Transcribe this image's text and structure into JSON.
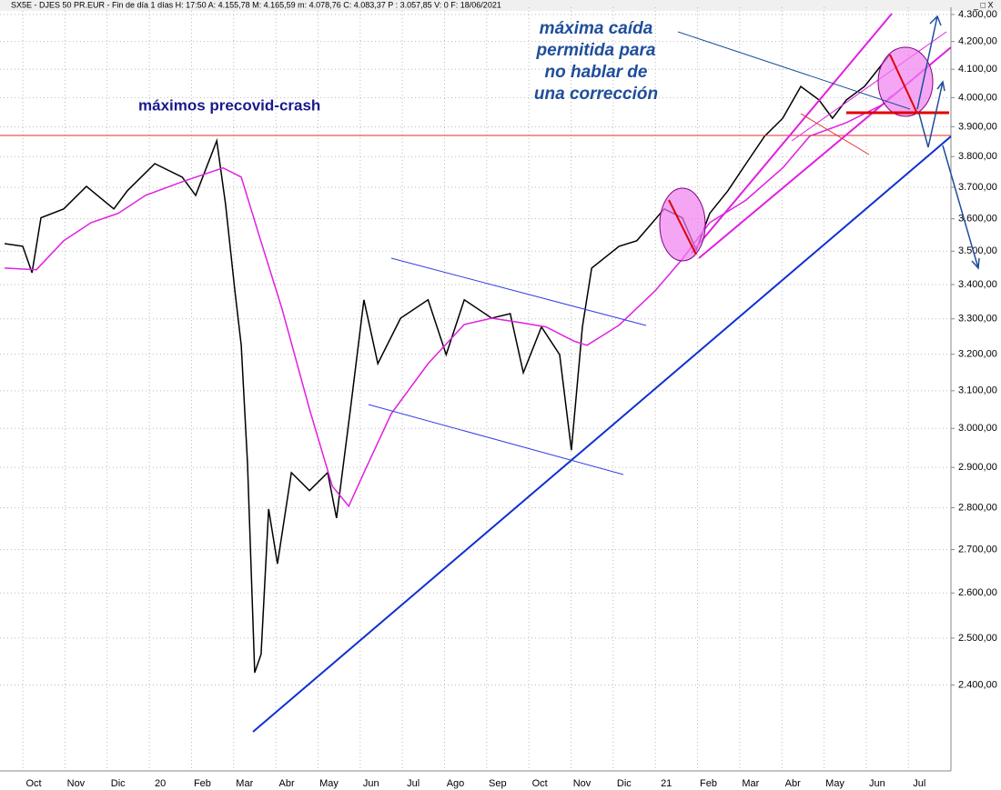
{
  "header": "SX5E - DJES 50 PR.EUR - Fin de día 1 días H: 17:50 A: 4.155,78 M: 4.165,59 m: 4.078,76 C: 4.083,37 P : 3.057,85 V: 0 F: 18/06/2021",
  "chart_data": {
    "type": "line",
    "annotations": [
      "máximos precovid-crash",
      "máxima caída",
      "permitida para",
      "no hablar de",
      "una corrección"
    ],
    "log_scale": true,
    "grid": true,
    "xlim": [
      0.2,
      22.75
    ],
    "xticks": [
      {
        "value": 1,
        "label": "Oct"
      },
      {
        "value": 2,
        "label": "Nov"
      },
      {
        "value": 3,
        "label": "Dic"
      },
      {
        "value": 4,
        "label": "20"
      },
      {
        "value": 5,
        "label": "Feb"
      },
      {
        "value": 6,
        "label": "Mar"
      },
      {
        "value": 7,
        "label": "Abr"
      },
      {
        "value": 8,
        "label": "May"
      },
      {
        "value": 9,
        "label": "Jun"
      },
      {
        "value": 10,
        "label": "Jul"
      },
      {
        "value": 11,
        "label": "Ago"
      },
      {
        "value": 12,
        "label": "Sep"
      },
      {
        "value": 13,
        "label": "Oct"
      },
      {
        "value": 14,
        "label": "Nov"
      },
      {
        "value": 15,
        "label": "Dic"
      },
      {
        "value": 16,
        "label": "21"
      },
      {
        "value": 17,
        "label": "Feb"
      },
      {
        "value": 18,
        "label": "Mar"
      },
      {
        "value": 19,
        "label": "Abr"
      },
      {
        "value": 20,
        "label": "May"
      },
      {
        "value": 21,
        "label": "Jun"
      },
      {
        "value": 22,
        "label": "Jul"
      }
    ],
    "ylim": [
      2245,
      4327
    ],
    "yticks": [
      {
        "value": 2400,
        "label": "2.400,00"
      },
      {
        "value": 2500,
        "label": "2.500,00"
      },
      {
        "value": 2600,
        "label": "2.600,00"
      },
      {
        "value": 2700,
        "label": "2.700,00"
      },
      {
        "value": 2800,
        "label": "2.800,00"
      },
      {
        "value": 2900,
        "label": "2.900,00"
      },
      {
        "value": 3000,
        "label": "3.000,00"
      },
      {
        "value": 3100,
        "label": "3.100,00"
      },
      {
        "value": 3200,
        "label": "3.200,00"
      },
      {
        "value": 3300,
        "label": "3.300,00"
      },
      {
        "value": 3400,
        "label": "3.400,00"
      },
      {
        "value": 3500,
        "label": "3.500,00"
      },
      {
        "value": 3600,
        "label": "3.600,00"
      },
      {
        "value": 3700,
        "label": "3.700,00"
      },
      {
        "value": 3800,
        "label": "3.800,00"
      },
      {
        "value": 3900,
        "label": "3.900,00"
      },
      {
        "value": 4000,
        "label": "4.000,00"
      },
      {
        "value": 4100,
        "label": "4.100,00"
      },
      {
        "value": 4200,
        "label": "4.200,00"
      },
      {
        "value": 4300,
        "label": "4.300,00"
      }
    ],
    "series": [
      {
        "color": "#000000",
        "x": [
          0.31,
          0.74,
          0.96,
          1.17,
          1.71,
          2.25,
          2.9,
          3.22,
          3.87,
          4.52,
          4.84,
          5.34,
          5.55,
          5.77,
          5.92,
          6.07,
          6.24,
          6.39,
          6.57,
          6.78,
          7.11,
          7.54,
          7.97,
          8.18,
          8.51,
          8.83,
          9.16,
          9.7,
          10.35,
          10.78,
          11.21,
          11.86,
          12.3,
          12.61,
          13.04,
          13.47,
          13.75,
          14.01,
          14.23,
          14.88,
          15.3,
          15.95,
          16.38,
          16.71,
          17.03,
          17.46,
          17.89,
          18.33,
          18.76,
          19.19,
          19.62,
          19.94,
          20.27,
          20.7,
          21.13,
          21.3
        ],
        "values": [
          3523,
          3515,
          3435,
          3603,
          3631,
          3703,
          3631,
          3689,
          3777,
          3733,
          3674,
          3853,
          3645,
          3382,
          3225,
          2910,
          2426,
          2465,
          2797,
          2667,
          2887,
          2842,
          2887,
          2775,
          3051,
          3355,
          3174,
          3302,
          3355,
          3199,
          3355,
          3302,
          3315,
          3149,
          3277,
          3199,
          2944,
          3277,
          3449,
          3515,
          3532,
          3631,
          3603,
          3504,
          3617,
          3689,
          3777,
          3868,
          3929,
          4039,
          3992,
          3929,
          3992,
          4039,
          4120,
          4153
        ]
      },
      {
        "color": "#e020e0",
        "x": [
          0.31,
          1.06,
          1.71,
          2.36,
          3.0,
          3.65,
          4.52,
          5.49,
          5.92,
          6.35,
          6.89,
          7.54,
          8.08,
          8.47,
          8.83,
          9.48,
          10.35,
          11.21,
          11.86,
          12.51,
          13.15,
          13.8,
          14.12,
          14.88,
          15.74,
          16.38,
          17.03,
          17.89,
          18.76,
          19.4,
          20.27,
          21.13,
          21.35
        ],
        "values": [
          3449,
          3444,
          3532,
          3588,
          3617,
          3674,
          3718,
          3763,
          3733,
          3546,
          3328,
          3051,
          2853,
          2804,
          2887,
          3039,
          3174,
          3284,
          3302,
          3290,
          3277,
          3237,
          3225,
          3282,
          3382,
          3476,
          3588,
          3659,
          3763,
          3868,
          3914,
          3976,
          4008
        ]
      }
    ]
  }
}
